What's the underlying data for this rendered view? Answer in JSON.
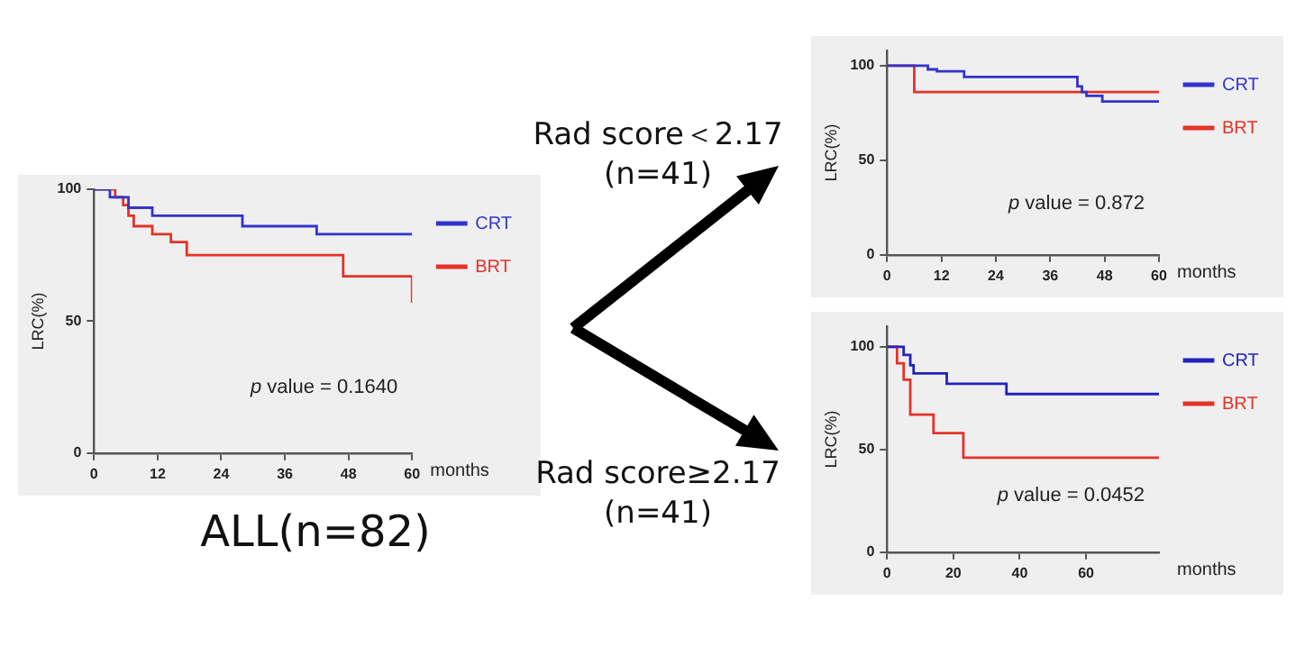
{
  "chart_data": [
    {
      "type": "step",
      "title": "ALL(n=82)",
      "xlabel": "months",
      "ylabel": "LRC(%)",
      "xlim": [
        0,
        60
      ],
      "xticks": [
        0,
        12,
        24,
        36,
        48,
        60
      ],
      "ylim": [
        0,
        100
      ],
      "yticks": [
        0,
        50,
        100
      ],
      "legend": "right",
      "grid": false,
      "annotations": [
        "p value = 0.1640"
      ],
      "series": [
        {
          "name": "CRT",
          "color": "#3333cc",
          "x": [
            0,
            3,
            6.5,
            11,
            28,
            42,
            60
          ],
          "values": [
            100,
            97,
            93,
            90,
            86,
            83,
            83
          ]
        },
        {
          "name": "BRT",
          "color": "#e53228",
          "x": [
            0,
            4,
            5.5,
            6.5,
            7.5,
            11,
            14.5,
            17.5,
            47,
            60
          ],
          "values": [
            100,
            97,
            94,
            90,
            86,
            83,
            80,
            75,
            67,
            57
          ]
        }
      ]
    },
    {
      "type": "step",
      "title": "Rad score＜2.17\n(n=41)",
      "xlabel": "months",
      "ylabel": "LRC(%)",
      "xlim": [
        0,
        60
      ],
      "xticks": [
        0,
        12,
        24,
        36,
        48,
        60
      ],
      "ylim": [
        0,
        108
      ],
      "yticks": [
        0,
        50,
        100
      ],
      "legend": "right",
      "grid": false,
      "annotations": [
        "p value = 0.872"
      ],
      "series": [
        {
          "name": "CRT",
          "color": "#3333cc",
          "x": [
            0,
            9,
            11,
            17,
            42,
            43,
            44,
            47.5,
            60
          ],
          "values": [
            100,
            98,
            97,
            94,
            89,
            86,
            84,
            81,
            81
          ]
        },
        {
          "name": "BRT",
          "color": "#e53228",
          "x": [
            0,
            6,
            60
          ],
          "values": [
            100,
            86,
            86
          ]
        }
      ]
    },
    {
      "type": "step",
      "title": "Rad score≥2.17\n(n=41)",
      "xlabel": "months",
      "ylabel": "LRC(%)",
      "xlim": [
        0,
        82
      ],
      "xticks": [
        0,
        20,
        40,
        60
      ],
      "ylim": [
        0,
        110
      ],
      "yticks": [
        0,
        50,
        100
      ],
      "legend": "right",
      "grid": false,
      "annotations": [
        "p value = 0.0452"
      ],
      "series": [
        {
          "name": "CRT",
          "color": "#2222bb",
          "x": [
            0,
            5,
            7,
            8,
            18,
            36,
            82
          ],
          "values": [
            100,
            96,
            91,
            87,
            82,
            77,
            77
          ]
        },
        {
          "name": "BRT",
          "color": "#e53228",
          "x": [
            0,
            3,
            5,
            7,
            14,
            23,
            82
          ],
          "values": [
            100,
            92,
            84,
            67,
            58,
            46,
            46
          ]
        }
      ]
    }
  ]
}
